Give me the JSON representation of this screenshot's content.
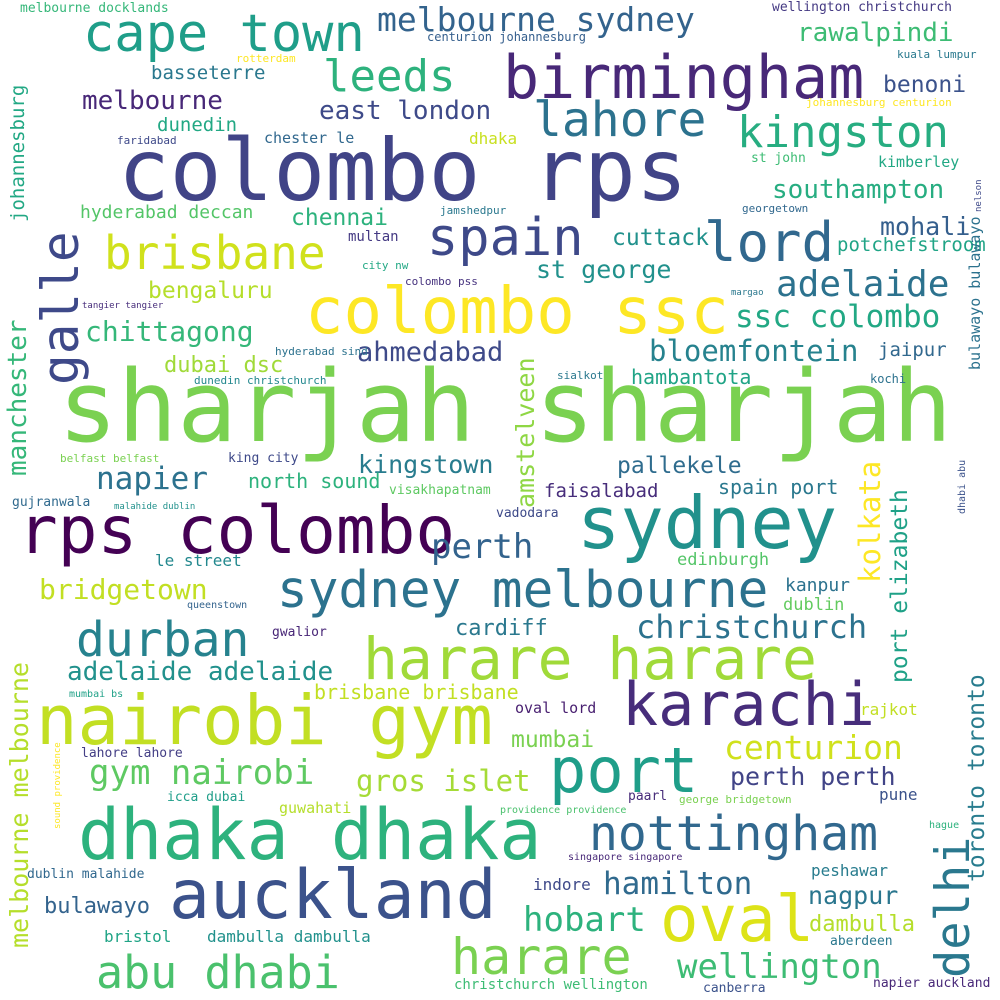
{
  "word_cloud": {
    "words": [
      {
        "text": "sharjah sharjah",
        "color": "#7ad151"
      },
      {
        "text": "colombo rps",
        "color": "#414487"
      },
      {
        "text": "colombo ssc",
        "color": "#fde725"
      },
      {
        "text": "rps colombo",
        "color": "#440154"
      },
      {
        "text": "nairobi gym",
        "color": "#c2df23"
      },
      {
        "text": "dhaka dhaka",
        "color": "#2db27d"
      },
      {
        "text": "auckland",
        "color": "#3b528b"
      },
      {
        "text": "birmingham",
        "color": "#482878"
      },
      {
        "text": "sydney",
        "color": "#21918c"
      },
      {
        "text": "sydney melbourne",
        "color": "#2c728e"
      },
      {
        "text": "harare harare",
        "color": "#a0da39"
      },
      {
        "text": "karachi",
        "color": "#472d7b"
      },
      {
        "text": "port",
        "color": "#1f9e89"
      },
      {
        "text": "nottingham",
        "color": "#31688e"
      },
      {
        "text": "oval",
        "color": "#dde318"
      },
      {
        "text": "harare",
        "color": "#7ad151"
      },
      {
        "text": "abu dhabi",
        "color": "#4ac16d"
      },
      {
        "text": "cape town",
        "color": "#1f9e89"
      },
      {
        "text": "spain",
        "color": "#3e4989"
      },
      {
        "text": "lord",
        "color": "#31688e"
      },
      {
        "text": "brisbane",
        "color": "#d0e11c"
      },
      {
        "text": "lahore",
        "color": "#2c728e"
      },
      {
        "text": "kingston",
        "color": "#27ad81"
      },
      {
        "text": "durban",
        "color": "#26828e"
      },
      {
        "text": "leeds",
        "color": "#2db27d"
      },
      {
        "text": "melbourne sydney",
        "color": "#33638d"
      },
      {
        "text": "perth",
        "color": "#33638d"
      },
      {
        "text": "gym nairobi",
        "color": "#5ec962"
      },
      {
        "text": "hobart",
        "color": "#2db27d"
      },
      {
        "text": "wellington",
        "color": "#3dbc74"
      },
      {
        "text": "centurion",
        "color": "#d0e11c"
      },
      {
        "text": "hamilton",
        "color": "#306a8e"
      },
      {
        "text": "christchurch",
        "color": "#2c728e"
      },
      {
        "text": "adelaide",
        "color": "#2c728e"
      },
      {
        "text": "ssc colombo",
        "color": "#22a884"
      },
      {
        "text": "bloemfontein",
        "color": "#26828e"
      },
      {
        "text": "bridgetown",
        "color": "#c2df23"
      },
      {
        "text": "napier",
        "color": "#2c728e"
      },
      {
        "text": "adelaide adelaide",
        "color": "#21918c"
      },
      {
        "text": "gros islet",
        "color": "#a5db36"
      },
      {
        "text": "ahmedabad",
        "color": "#3e4a89"
      },
      {
        "text": "chittagong",
        "color": "#35b779"
      },
      {
        "text": "kingstown",
        "color": "#287c8e"
      },
      {
        "text": "mohali",
        "color": "#355f8d"
      },
      {
        "text": "southampton",
        "color": "#27ad81"
      },
      {
        "text": "rawalpindi",
        "color": "#3dbc74"
      },
      {
        "text": "melbourne",
        "color": "#482878"
      },
      {
        "text": "east london",
        "color": "#3e4a89"
      },
      {
        "text": "st george",
        "color": "#21918c"
      },
      {
        "text": "nagpur",
        "color": "#2a768e"
      },
      {
        "text": "perth perth",
        "color": "#414487"
      },
      {
        "text": "pallekele",
        "color": "#2f6c8e"
      },
      {
        "text": "cuttack",
        "color": "#21918c"
      },
      {
        "text": "benoni",
        "color": "#3b528b"
      },
      {
        "text": "chennai",
        "color": "#2db27d"
      },
      {
        "text": "mumbai",
        "color": "#7ad151"
      },
      {
        "text": "bengaluru",
        "color": "#b5de2b"
      },
      {
        "text": "cardiff",
        "color": "#2a788e"
      },
      {
        "text": "dambulla",
        "color": "#b5de2b"
      },
      {
        "text": "dubai dsc",
        "color": "#a0da39"
      },
      {
        "text": "bulawayo",
        "color": "#33638d"
      },
      {
        "text": "north sound",
        "color": "#2db27d"
      },
      {
        "text": "spain port",
        "color": "#2a788e"
      },
      {
        "text": "hambantota",
        "color": "#20a486"
      },
      {
        "text": "brisbane brisbane",
        "color": "#c2df23"
      },
      {
        "text": "potchefstroom",
        "color": "#20a486"
      },
      {
        "text": "faisalabad",
        "color": "#472d7b"
      },
      {
        "text": "jaipur",
        "color": "#31688e"
      },
      {
        "text": "basseterre",
        "color": "#2a788e"
      },
      {
        "text": "dunedin",
        "color": "#22a884"
      },
      {
        "text": "hyderabad deccan",
        "color": "#54c568"
      },
      {
        "text": "kanpur",
        "color": "#2c728e"
      },
      {
        "text": "dublin",
        "color": "#63cb5f"
      },
      {
        "text": "edinburgh",
        "color": "#54c568"
      },
      {
        "text": "le street",
        "color": "#23888e"
      },
      {
        "text": "dambulla dambulla",
        "color": "#21918c"
      },
      {
        "text": "bristol",
        "color": "#20a486"
      },
      {
        "text": "rajkot",
        "color": "#c2df23"
      },
      {
        "text": "peshawar",
        "color": "#287c8e"
      },
      {
        "text": "pune",
        "color": "#3b528b"
      },
      {
        "text": "indore",
        "color": "#3e4989"
      },
      {
        "text": "oval lord",
        "color": "#481f70"
      },
      {
        "text": "guwahati",
        "color": "#b5de2b"
      },
      {
        "text": "paarl",
        "color": "#472c7a"
      },
      {
        "text": "kimberley",
        "color": "#22a884"
      },
      {
        "text": "multan",
        "color": "#443983"
      },
      {
        "text": "vadodara",
        "color": "#3e4a89"
      },
      {
        "text": "gwalior",
        "color": "#482677"
      },
      {
        "text": "visakhapatnam",
        "color": "#5ec962"
      },
      {
        "text": "chester le",
        "color": "#31688e"
      },
      {
        "text": "dhaka",
        "color": "#c8e020"
      },
      {
        "text": "canberra",
        "color": "#3b528b"
      },
      {
        "text": "aberdeen",
        "color": "#2a788e"
      },
      {
        "text": "lahore lahore",
        "color": "#433e85"
      },
      {
        "text": "king city",
        "color": "#3e4989"
      },
      {
        "text": "icca dubai",
        "color": "#1f9e89"
      },
      {
        "text": "christchurch wellington",
        "color": "#3dbc74"
      },
      {
        "text": "napier auckland",
        "color": "#482878"
      },
      {
        "text": "gujranwala",
        "color": "#306a8e"
      },
      {
        "text": "dublin malahide",
        "color": "#31688e"
      },
      {
        "text": "kochi",
        "color": "#2c728e"
      },
      {
        "text": "sialkot",
        "color": "#2a788e"
      },
      {
        "text": "melbourne docklands",
        "color": "#35b779"
      },
      {
        "text": "wellington christchurch",
        "color": "#443983"
      },
      {
        "text": "centurion johannesburg",
        "color": "#355f8d"
      },
      {
        "text": "kuala lumpur",
        "color": "#29798e"
      },
      {
        "text": "rotterdam",
        "color": "#fde725"
      },
      {
        "text": "johannesburg centurion",
        "color": "#fde725"
      },
      {
        "text": "st john",
        "color": "#3dbc74"
      },
      {
        "text": "georgetown",
        "color": "#31688e"
      },
      {
        "text": "jamshedpur",
        "color": "#2a788e"
      },
      {
        "text": "faridabad",
        "color": "#3e4989"
      },
      {
        "text": "city nw",
        "color": "#22a884"
      },
      {
        "text": "colombo pss",
        "color": "#46327e"
      },
      {
        "text": "hyderabad sind",
        "color": "#2c728e"
      },
      {
        "text": "dunedin christchurch",
        "color": "#23888e"
      },
      {
        "text": "belfast belfast",
        "color": "#7ad151"
      },
      {
        "text": "tangier tangier",
        "color": "#472d7b"
      },
      {
        "text": "margao",
        "color": "#2a788e"
      },
      {
        "text": "malahide dublin",
        "color": "#21918c"
      },
      {
        "text": "queenstown",
        "color": "#33638d"
      },
      {
        "text": "mumbai bs",
        "color": "#1fa187"
      },
      {
        "text": "providence providence",
        "color": "#4ac16d"
      },
      {
        "text": "singapore singapore",
        "color": "#482878"
      },
      {
        "text": "george bridgetown",
        "color": "#7ad151"
      },
      {
        "text": "hague",
        "color": "#2db27d"
      },
      {
        "text": "galle",
        "color": "#3e4989"
      },
      {
        "text": "manchester",
        "color": "#35b779"
      },
      {
        "text": "johannesburg",
        "color": "#22a884"
      },
      {
        "text": "amstelveen",
        "color": "#8fd744"
      },
      {
        "text": "kolkata",
        "color": "#fde725"
      },
      {
        "text": "delhi",
        "color": "#2a788e"
      },
      {
        "text": "port elizabeth",
        "color": "#1fa187"
      },
      {
        "text": "toronto toronto",
        "color": "#287c8e"
      },
      {
        "text": "melbourne melbourne",
        "color": "#b5de2b"
      },
      {
        "text": "bulawayo bulawayo",
        "color": "#2c728e"
      },
      {
        "text": "dhabi abu",
        "color": "#3b528b"
      },
      {
        "text": "nelson",
        "color": "#3e4989"
      },
      {
        "text": "sound providence",
        "color": "#fde725"
      }
    ]
  }
}
